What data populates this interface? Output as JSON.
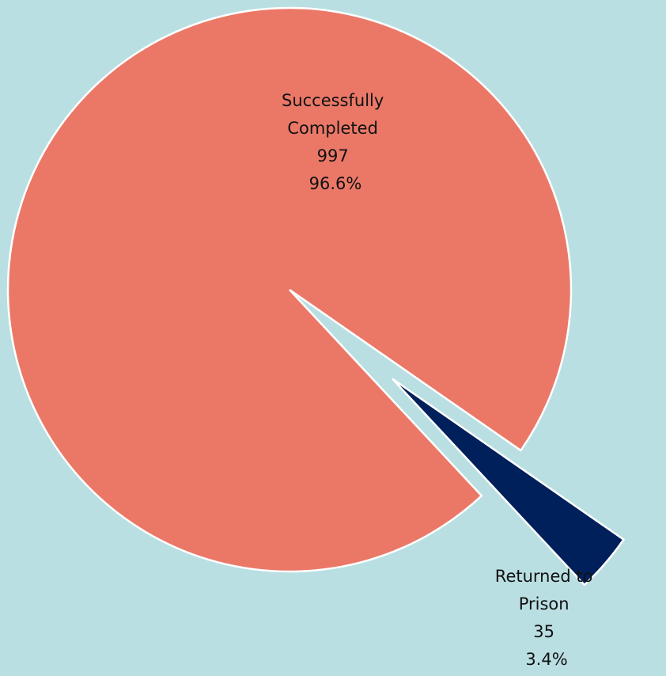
{
  "chart_data": {
    "type": "pie",
    "background": "#badfe2",
    "slices": [
      {
        "label_lines": [
          "Successfully",
          "Completed"
        ],
        "value": 997,
        "percent_label": "96.6%",
        "color": "#eb7867",
        "exploded": false
      },
      {
        "label_lines": [
          "Returned to",
          "Prison"
        ],
        "value": 35,
        "percent_label": "3.4%",
        "color": "#00205b",
        "exploded": true
      }
    ]
  }
}
